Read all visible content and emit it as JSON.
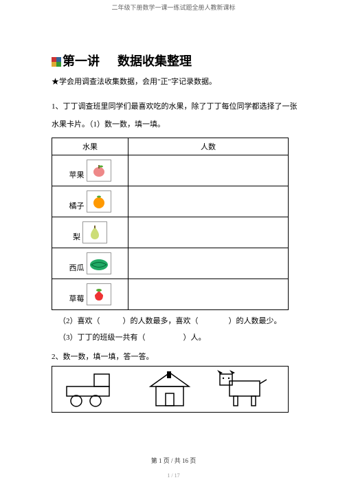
{
  "header": "二年级下册数学一课一练试题全册人教新课标",
  "lesson_title_1": "第一讲",
  "lesson_title_2": "数据收集整理",
  "objective": "★学会用调查法收集数据，会用\"正\"字记录数据。",
  "q1_text": "1、丁丁调查班里同学们最喜欢吃的水果，除了丁丁每位同学都选择了一张水果卡片。（1）数一数，填一填。",
  "table": {
    "header_fruit": "水果",
    "header_count": "人数",
    "rows": [
      {
        "label": "苹果",
        "icon_color": "#e88",
        "icon_type": "apple"
      },
      {
        "label": "橘子",
        "icon_color": "#f90",
        "icon_type": "orange"
      },
      {
        "label": "梨",
        "icon_color": "#cd7",
        "icon_type": "pear"
      },
      {
        "label": "西瓜",
        "icon_color": "#2a6",
        "icon_type": "melon"
      },
      {
        "label": "草莓",
        "icon_color": "#e33",
        "icon_type": "berry"
      }
    ]
  },
  "sub2": "（2）喜欢（　　　）的人数最多，喜欢（　　　　）的人数最少。",
  "sub3": "（3）丁丁的班级一共有（　　　　　）人。",
  "q2_text": "2、数一数，填一填，答一答。",
  "footer": "第 1 页 / 共 16 页",
  "footer2": "1 / 17",
  "title_icon_colors": {
    "a": "#cc3333",
    "b": "#336699",
    "c": "#ddaa33",
    "d": "#339933"
  }
}
